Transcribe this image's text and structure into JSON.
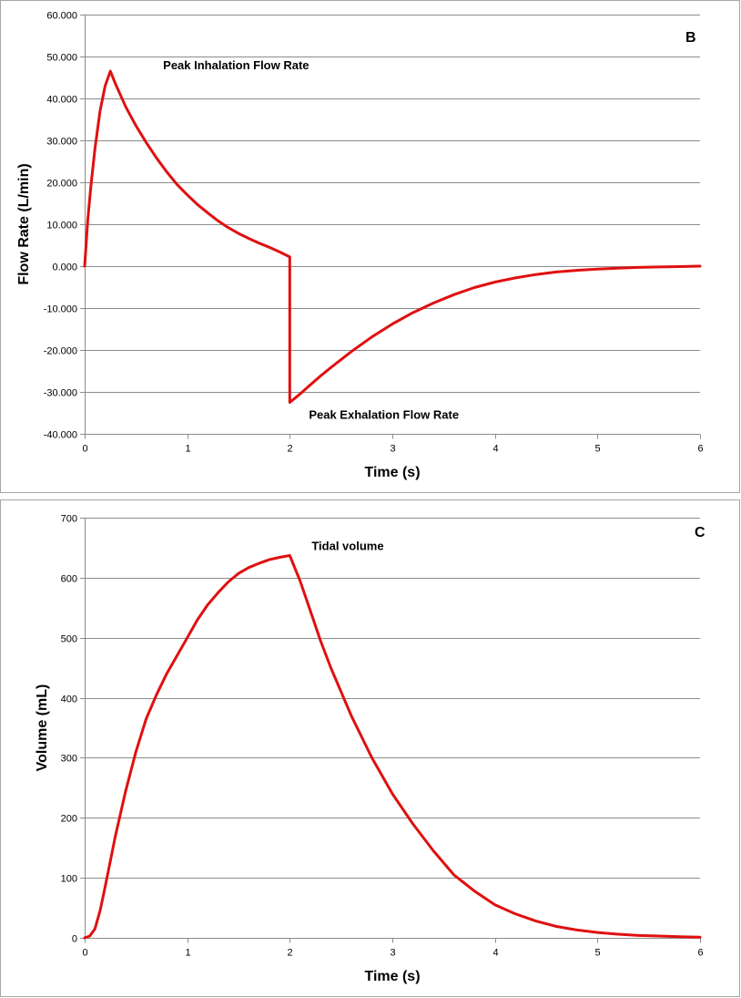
{
  "chart_data": [
    {
      "type": "line",
      "panel_label": "B",
      "xlabel": "Time (s)",
      "ylabel": "Flow Rate (L/min)",
      "xlim": [
        0,
        6
      ],
      "ylim": [
        -40,
        60
      ],
      "x_ticks": [
        "0",
        "1",
        "2",
        "3",
        "4",
        "5",
        "6"
      ],
      "y_ticks": [
        "60.000",
        "50.000",
        "40.000",
        "30.000",
        "20.000",
        "10.000",
        "0.000",
        "-10.000",
        "-20.000",
        "-30.000",
        "-40.000"
      ],
      "grid": true,
      "series": [
        {
          "color": "#e01010",
          "x": [
            0,
            0.03,
            0.06,
            0.1,
            0.15,
            0.2,
            0.25,
            0.3,
            0.4,
            0.5,
            0.6,
            0.7,
            0.8,
            0.9,
            1.0,
            1.1,
            1.2,
            1.3,
            1.4,
            1.5,
            1.6,
            1.7,
            1.8,
            1.9,
            2.0,
            2.0,
            2.1,
            2.2,
            2.3,
            2.4,
            2.6,
            2.8,
            3.0,
            3.2,
            3.4,
            3.6,
            3.8,
            4.0,
            4.2,
            4.4,
            4.6,
            4.8,
            5.0,
            5.2,
            5.4,
            5.6,
            5.8,
            6.0
          ],
          "y": [
            0,
            11,
            19,
            28,
            37,
            43,
            46.5,
            43.5,
            38,
            33.5,
            29.5,
            25.8,
            22.5,
            19.5,
            17,
            14.7,
            12.7,
            10.8,
            9.2,
            7.8,
            6.6,
            5.5,
            4.5,
            3.4,
            2.2,
            -32.5,
            -30.5,
            -28.3,
            -26.2,
            -24.2,
            -20.4,
            -16.9,
            -13.8,
            -11.1,
            -8.8,
            -6.8,
            -5.1,
            -3.8,
            -2.8,
            -2.0,
            -1.4,
            -1.0,
            -0.7,
            -0.5,
            -0.3,
            -0.2,
            -0.1,
            0
          ]
        }
      ],
      "annotations": [
        {
          "text": "Peak Inhalation Flow Rate",
          "x": 0.25,
          "y": 46.5
        },
        {
          "text": "Peak Exhalation Flow Rate",
          "x": 2.0,
          "y": -32.5
        }
      ]
    },
    {
      "type": "line",
      "panel_label": "C",
      "xlabel": "Time (s)",
      "ylabel": "Volume (mL)",
      "xlim": [
        0,
        6
      ],
      "ylim": [
        0,
        700
      ],
      "x_ticks": [
        "0",
        "1",
        "2",
        "3",
        "4",
        "5",
        "6"
      ],
      "y_ticks": [
        "700",
        "600",
        "500",
        "400",
        "300",
        "200",
        "100",
        "0"
      ],
      "grid": true,
      "series": [
        {
          "color": "#e01010",
          "x": [
            0,
            0.05,
            0.1,
            0.15,
            0.2,
            0.3,
            0.4,
            0.5,
            0.6,
            0.7,
            0.8,
            0.9,
            1.0,
            1.1,
            1.2,
            1.3,
            1.4,
            1.5,
            1.6,
            1.7,
            1.8,
            1.9,
            2.0,
            2.1,
            2.2,
            2.3,
            2.4,
            2.6,
            2.8,
            3.0,
            3.2,
            3.4,
            3.6,
            3.8,
            4.0,
            4.2,
            4.4,
            4.6,
            4.8,
            5.0,
            5.2,
            5.4,
            5.6,
            5.8,
            6.0
          ],
          "y": [
            0,
            3,
            15,
            45,
            85,
            170,
            245,
            310,
            365,
            405,
            440,
            470,
            500,
            530,
            555,
            575,
            593,
            607,
            617,
            624,
            630,
            634,
            637,
            595,
            545,
            495,
            450,
            370,
            300,
            240,
            190,
            145,
            105,
            78,
            55,
            40,
            28,
            19,
            13,
            9,
            6,
            4,
            3,
            2,
            1
          ]
        }
      ],
      "annotations": [
        {
          "text": "Tidal volume",
          "x": 2.0,
          "y": 637
        }
      ]
    }
  ]
}
